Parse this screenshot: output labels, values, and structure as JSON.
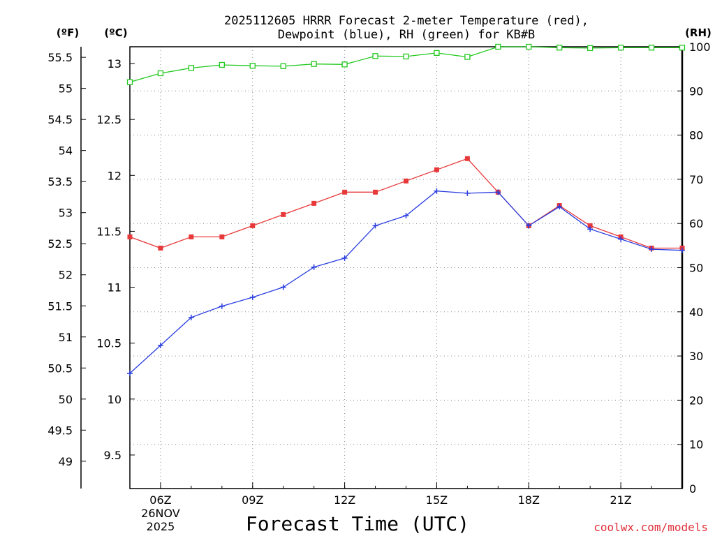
{
  "chart_data": {
    "type": "line",
    "title": {
      "line1": "2025112605 HRRR Forecast 2-meter Temperature (red),",
      "line2": "Dewpoint (blue), RH (green) for KB#B"
    },
    "xlabel": "Forecast Time (UTC)",
    "credit": "coolwx.com/models",
    "units": {
      "f": "(ºF)",
      "c": "(ºC)",
      "rh": "(RH)"
    },
    "x_hours": [
      5,
      6,
      7,
      8,
      9,
      10,
      11,
      12,
      13,
      14,
      15,
      16,
      17,
      18,
      19,
      20,
      21,
      22,
      23
    ],
    "xlim_hours": [
      5,
      23
    ],
    "x_ticks": [
      {
        "hour": 6,
        "label": "06Z",
        "sub1": "26NOV",
        "sub2": "2025"
      },
      {
        "hour": 9,
        "label": "09Z"
      },
      {
        "hour": 12,
        "label": "12Z"
      },
      {
        "hour": 15,
        "label": "15Z"
      },
      {
        "hour": 18,
        "label": "18Z"
      },
      {
        "hour": 21,
        "label": "21Z"
      }
    ],
    "c_axis": {
      "min": 9.2,
      "max": 13.15,
      "ticks": [
        "9.5",
        "10",
        "10.5",
        "11",
        "11.5",
        "12",
        "12.5",
        "13"
      ]
    },
    "f_axis": {
      "ticks": [
        "49",
        "49.5",
        "50",
        "50.5",
        "51",
        "51.5",
        "52",
        "52.5",
        "53",
        "53.5",
        "54",
        "54.5",
        "55",
        "55.5"
      ]
    },
    "rh_axis": {
      "min": 0,
      "max": 100,
      "ticks": [
        "0",
        "10",
        "20",
        "30",
        "40",
        "50",
        "60",
        "70",
        "80",
        "90",
        "100"
      ]
    },
    "series": [
      {
        "name": "Temperature",
        "color": "#e8393a",
        "axis": "c",
        "marker": "square",
        "values": [
          11.45,
          11.35,
          11.45,
          11.45,
          11.55,
          11.65,
          11.75,
          11.85,
          11.85,
          11.95,
          12.05,
          12.15,
          11.85,
          11.55,
          11.73,
          11.55,
          11.45,
          11.35,
          11.35
        ]
      },
      {
        "name": "Dewpoint",
        "color": "#2a3ee0",
        "axis": "c",
        "marker": "plus",
        "values": [
          10.23,
          10.48,
          10.73,
          10.83,
          10.91,
          11.0,
          11.18,
          11.26,
          11.55,
          11.64,
          11.86,
          11.84,
          11.85,
          11.55,
          11.72,
          11.52,
          11.43,
          11.34,
          11.33
        ]
      },
      {
        "name": "RH",
        "color": "#22c81e",
        "axis": "rh",
        "marker": "open-square",
        "values": [
          92,
          94,
          95.2,
          95.9,
          95.7,
          95.6,
          96.1,
          96,
          97.9,
          97.8,
          98.6,
          97.7,
          100,
          100,
          99.8,
          99.7,
          99.8,
          99.8,
          99.8
        ]
      }
    ]
  }
}
